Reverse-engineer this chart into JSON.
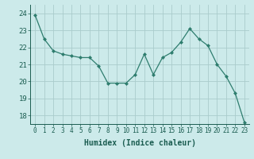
{
  "x": [
    0,
    1,
    2,
    3,
    4,
    5,
    6,
    7,
    8,
    9,
    10,
    11,
    12,
    13,
    14,
    15,
    16,
    17,
    18,
    19,
    20,
    21,
    22,
    23
  ],
  "y": [
    23.9,
    22.5,
    21.8,
    21.6,
    21.5,
    21.4,
    21.4,
    20.9,
    19.9,
    19.9,
    19.9,
    20.4,
    21.6,
    20.4,
    21.4,
    21.7,
    22.3,
    23.1,
    22.5,
    22.1,
    21.0,
    20.3,
    19.3,
    17.6
  ],
  "line_color": "#2e7d6e",
  "marker": "D",
  "marker_size": 2.0,
  "bg_color": "#cceaea",
  "grid_color": "#aacccc",
  "xlabel": "Humidex (Indice chaleur)",
  "ylim": [
    17.5,
    24.5
  ],
  "xlim": [
    -0.5,
    23.5
  ],
  "yticks": [
    18,
    19,
    20,
    21,
    22,
    23,
    24
  ],
  "xticks": [
    0,
    1,
    2,
    3,
    4,
    5,
    6,
    7,
    8,
    9,
    10,
    11,
    12,
    13,
    14,
    15,
    16,
    17,
    18,
    19,
    20,
    21,
    22,
    23
  ],
  "tick_color": "#1a5c50",
  "label_fontsize": 6.5,
  "tick_fontsize": 5.5,
  "xlabel_fontsize": 7.0
}
